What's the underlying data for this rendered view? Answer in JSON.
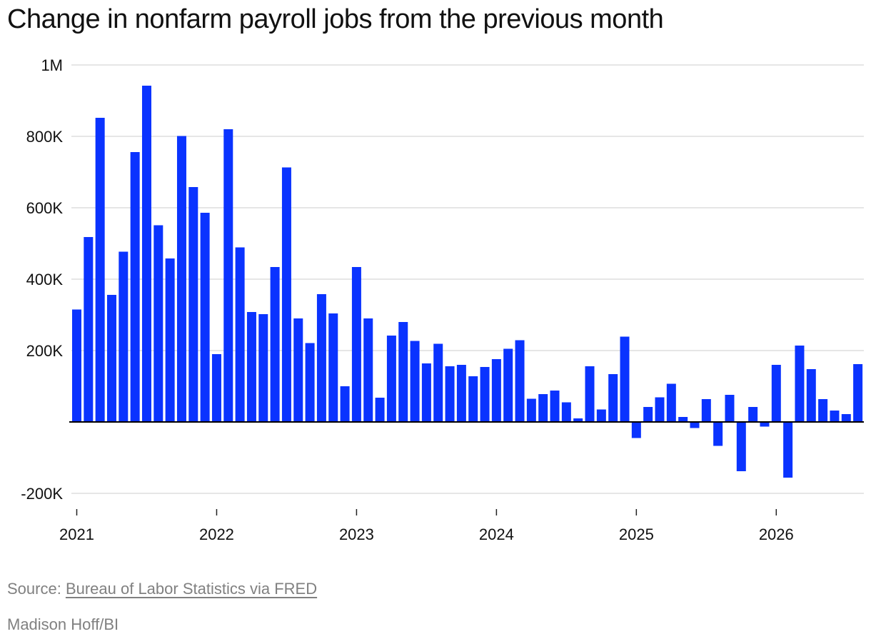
{
  "title": "Change in nonfarm payroll jobs from the previous month",
  "source_prefix": "Source: ",
  "source_link": "Bureau of Labor Statistics via FRED",
  "credit": "Madison Hoff/BI",
  "colors": {
    "bar": "#0a33ff",
    "grid": "#dddddd",
    "zero_line": "#000000",
    "text": "#111111",
    "muted": "#808080"
  },
  "chart_data": {
    "type": "bar",
    "title": "Change in nonfarm payroll jobs from the previous month",
    "x_start": "2021-01",
    "x_end": "2026-08",
    "ylim": [
      -230000,
      1000000
    ],
    "y_ticks": [
      {
        "value": 1000000,
        "label": "1M"
      },
      {
        "value": 800000,
        "label": "800K"
      },
      {
        "value": 600000,
        "label": "600K"
      },
      {
        "value": 400000,
        "label": "400K"
      },
      {
        "value": 200000,
        "label": "200K"
      },
      {
        "value": -200000,
        "label": "-200K"
      }
    ],
    "x_ticks": [
      "2021",
      "2022",
      "2023",
      "2024",
      "2025",
      "2026"
    ],
    "grid": true,
    "legend": "none",
    "months": [
      "2021-01",
      "2021-02",
      "2021-03",
      "2021-04",
      "2021-05",
      "2021-06",
      "2021-07",
      "2021-08",
      "2021-09",
      "2021-10",
      "2021-11",
      "2021-12",
      "2022-01",
      "2022-02",
      "2022-03",
      "2022-04",
      "2022-05",
      "2022-06",
      "2022-07",
      "2022-08",
      "2022-09",
      "2022-10",
      "2022-11",
      "2022-12",
      "2023-01",
      "2023-02",
      "2023-03",
      "2023-04",
      "2023-05",
      "2023-06",
      "2023-07",
      "2023-08",
      "2023-09",
      "2023-10",
      "2023-11",
      "2023-12",
      "2024-01",
      "2024-02",
      "2024-03",
      "2024-04",
      "2024-05",
      "2024-06",
      "2024-07",
      "2024-08",
      "2024-09",
      "2024-10",
      "2024-11",
      "2024-12",
      "2025-01",
      "2025-02",
      "2025-03",
      "2025-04",
      "2025-05",
      "2025-06",
      "2025-07",
      "2025-08",
      "2025-09",
      "2025-10",
      "2025-11",
      "2025-12",
      "2026-01",
      "2026-02",
      "2026-03",
      "2026-04",
      "2026-05",
      "2026-06",
      "2026-07",
      "2026-08"
    ],
    "values": [
      315000,
      518000,
      852000,
      356000,
      477000,
      756000,
      942000,
      551000,
      458000,
      801000,
      658000,
      586000,
      190000,
      820000,
      489000,
      308000,
      302000,
      434000,
      713000,
      290000,
      221000,
      358000,
      304000,
      100000,
      434000,
      290000,
      68000,
      242000,
      280000,
      227000,
      164000,
      219000,
      156000,
      160000,
      128000,
      154000,
      176000,
      205000,
      229000,
      65000,
      78000,
      88000,
      55000,
      10000,
      156000,
      35000,
      134000,
      239000,
      -45000,
      42000,
      69000,
      107000,
      14000,
      -17000,
      64000,
      -67000,
      76000,
      -138000,
      42000,
      -13000,
      160000,
      -156000,
      214000,
      148000,
      64000,
      32000,
      22000,
      162000
    ]
  }
}
